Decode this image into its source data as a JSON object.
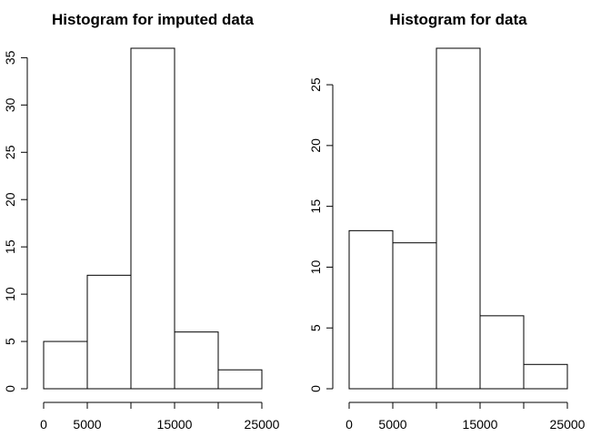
{
  "chart_data": [
    {
      "type": "bar",
      "title": "Histogram for imputed data",
      "xlabel": "",
      "ylabel": "",
      "bins": [
        [
          0,
          5000
        ],
        [
          5000,
          10000
        ],
        [
          10000,
          15000
        ],
        [
          15000,
          20000
        ],
        [
          20000,
          25000
        ]
      ],
      "values": [
        5,
        12,
        36,
        6,
        2
      ],
      "xlim": [
        0,
        25000
      ],
      "ylim": [
        0,
        36
      ],
      "x_ticks": [
        0,
        5000,
        10000,
        15000,
        20000,
        25000
      ],
      "x_tick_labels": [
        "0",
        "5000",
        "",
        "15000",
        "",
        "25000"
      ],
      "y_ticks": [
        0,
        5,
        10,
        15,
        20,
        25,
        30,
        35
      ],
      "y_tick_labels": [
        "0",
        "5",
        "10",
        "15",
        "20",
        "25",
        "30",
        "35"
      ],
      "grid": false,
      "fill_color": "#ffffff",
      "stroke_color": "#000000"
    },
    {
      "type": "bar",
      "title": "Histogram for data",
      "xlabel": "",
      "ylabel": "",
      "bins": [
        [
          0,
          5000
        ],
        [
          5000,
          10000
        ],
        [
          10000,
          15000
        ],
        [
          15000,
          20000
        ],
        [
          20000,
          25000
        ]
      ],
      "values": [
        13,
        12,
        28,
        6,
        2
      ],
      "xlim": [
        0,
        25000
      ],
      "ylim": [
        0,
        28
      ],
      "x_ticks": [
        0,
        5000,
        10000,
        15000,
        20000,
        25000
      ],
      "x_tick_labels": [
        "0",
        "5000",
        "",
        "15000",
        "",
        "25000"
      ],
      "y_ticks": [
        0,
        5,
        10,
        15,
        20,
        25
      ],
      "y_tick_labels": [
        "0",
        "5",
        "10",
        "15",
        "20",
        "25"
      ],
      "grid": false,
      "fill_color": "#ffffff",
      "stroke_color": "#000000"
    }
  ]
}
